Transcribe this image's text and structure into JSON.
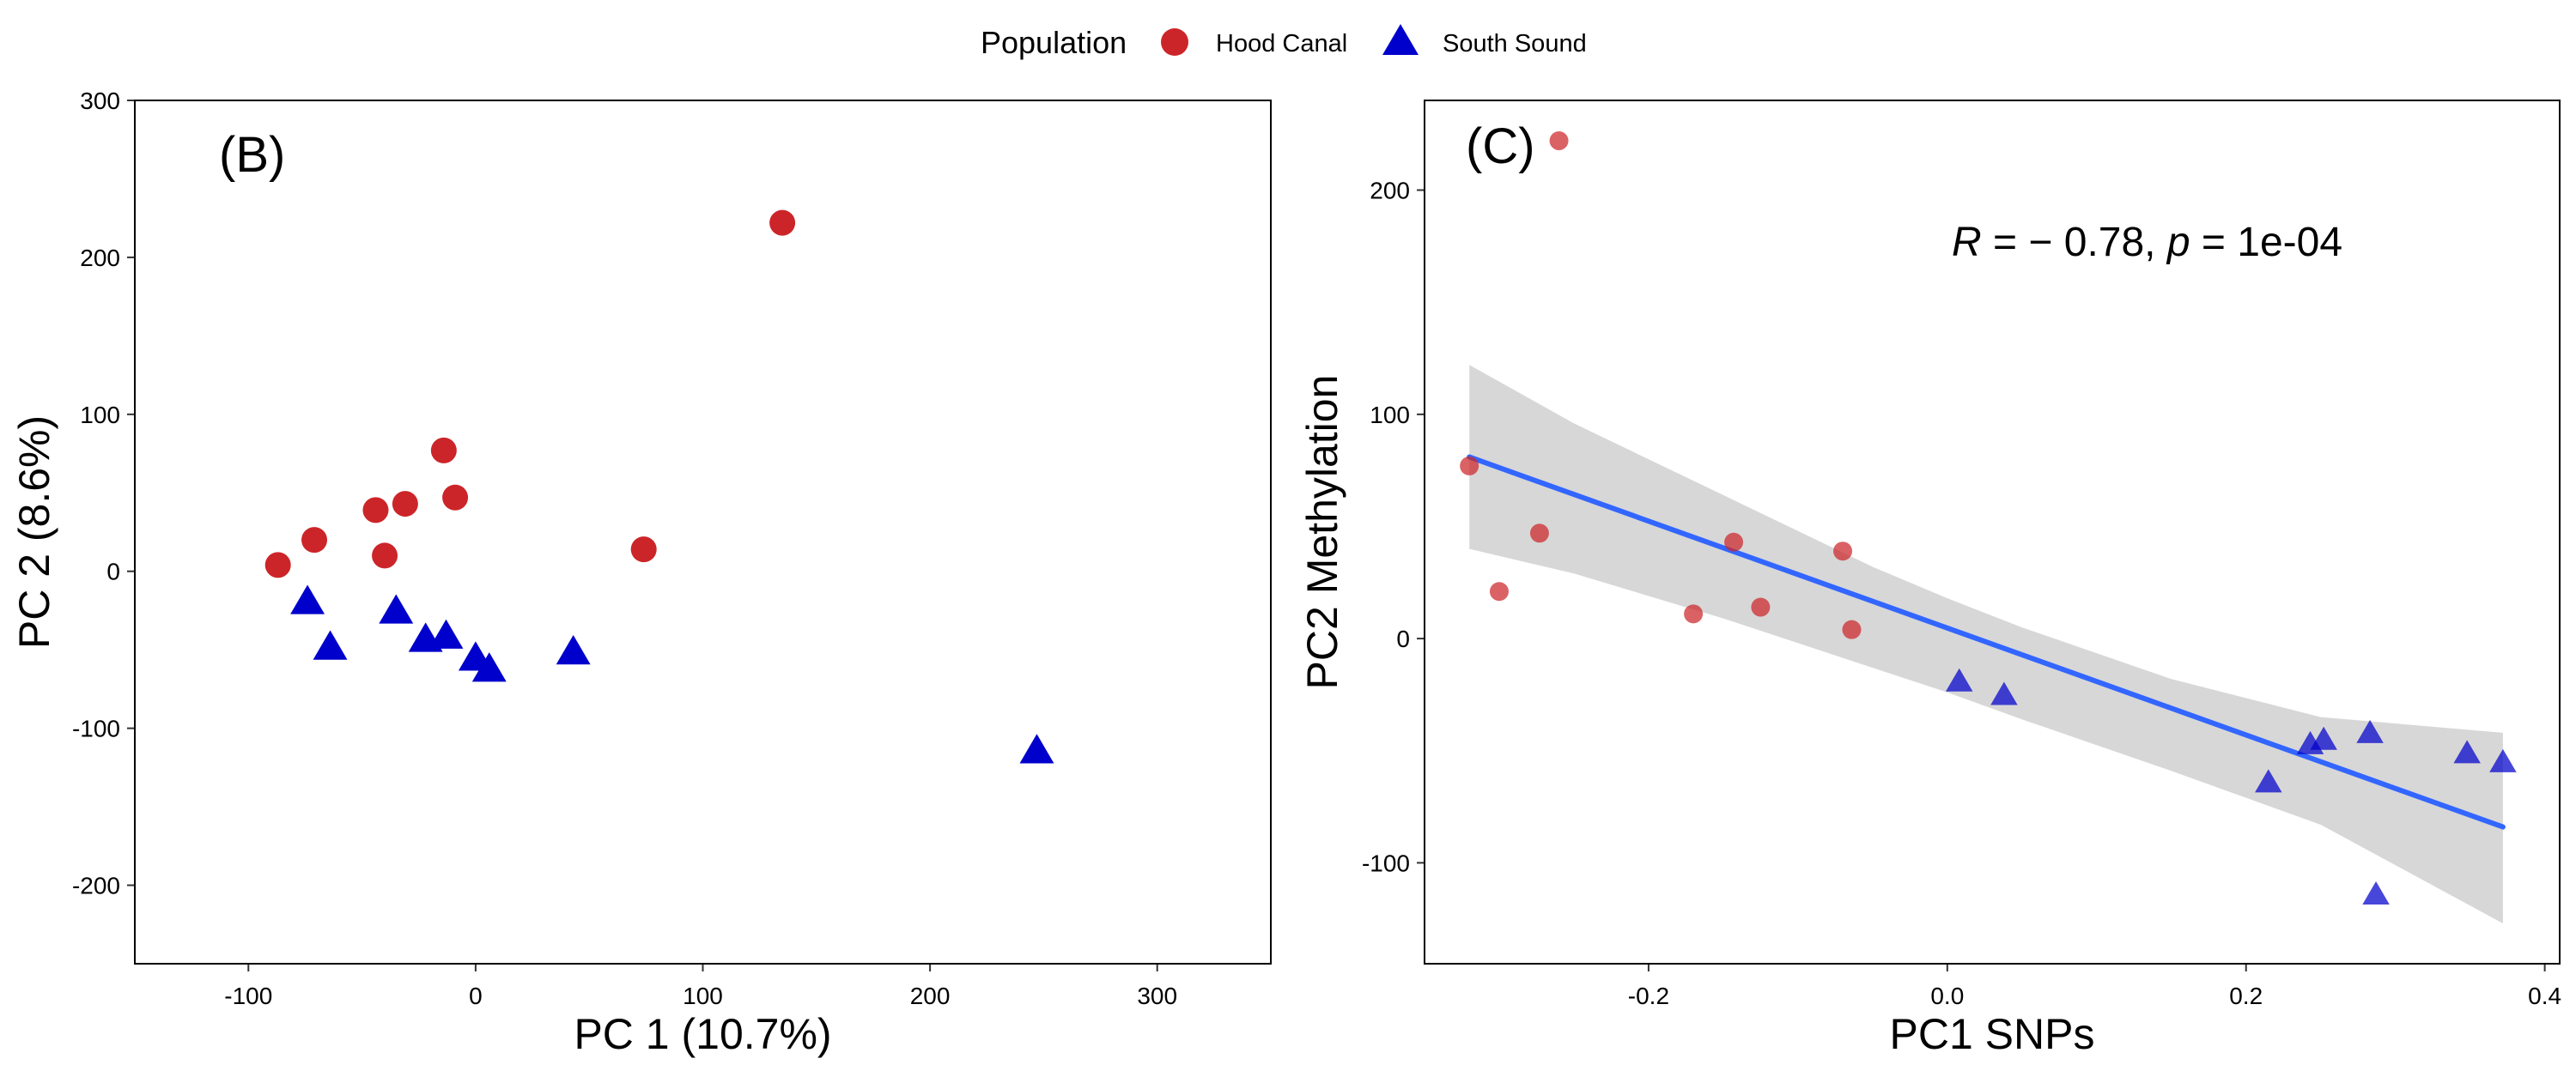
{
  "legend": {
    "title": "Population",
    "entries": [
      {
        "label": "Hood Canal",
        "shape": "circle",
        "color": "#cc2529"
      },
      {
        "label": "South Sound",
        "shape": "triangle",
        "color": "#0000cc"
      }
    ]
  },
  "chart_data": [
    {
      "type": "scatter",
      "panel_label": "(B)",
      "xlabel": "PC 1 (10.7%)",
      "ylabel": "PC 2 (8.6%)",
      "xlim": [
        -150,
        350
      ],
      "ylim": [
        -250,
        300
      ],
      "xticks": [
        -100,
        0,
        100,
        200,
        300
      ],
      "xtick_labels": [
        "-100",
        "0",
        "100",
        "200",
        "300"
      ],
      "yticks": [
        -200,
        -100,
        0,
        100,
        200,
        300
      ],
      "ytick_labels": [
        "-200",
        "-100",
        "0",
        "100",
        "200",
        "300"
      ],
      "grid": false,
      "series": [
        {
          "name": "Hood Canal",
          "marker": "circle",
          "color": "#cc2529",
          "points": [
            [
              -87,
              4
            ],
            [
              -71,
              20
            ],
            [
              -44,
              39
            ],
            [
              -40,
              10
            ],
            [
              -31,
              43
            ],
            [
              -14,
              77
            ],
            [
              -9,
              47
            ],
            [
              74,
              14
            ],
            [
              135,
              222
            ]
          ]
        },
        {
          "name": "South Sound",
          "marker": "triangle",
          "color": "#0000cc",
          "points": [
            [
              -74,
              -19
            ],
            [
              -64,
              -48
            ],
            [
              -35,
              -25
            ],
            [
              -22,
              -43
            ],
            [
              -13,
              -41
            ],
            [
              0,
              -55
            ],
            [
              6,
              -62
            ],
            [
              43,
              -51
            ],
            [
              247,
              -114
            ]
          ]
        }
      ]
    },
    {
      "type": "scatter",
      "panel_label": "(C)",
      "xlabel": "PC1 SNPs",
      "ylabel": "PC2 Methylation",
      "xlim": [
        -0.35,
        0.41
      ],
      "ylim": [
        -145,
        240
      ],
      "xticks": [
        -0.2,
        0.0,
        0.2,
        0.4
      ],
      "xtick_labels": [
        "-0.2",
        "0.0",
        "0.2",
        "0.4"
      ],
      "yticks": [
        -100,
        0,
        100,
        200
      ],
      "ytick_labels": [
        "-100",
        "0",
        "100",
        "200"
      ],
      "grid": false,
      "annotation": {
        "r_symbol": "R",
        "r_rest": " = − 0.78, ",
        "p_symbol": "p",
        "p_rest": " = 1e-04"
      },
      "regression": {
        "color": "#3366ff",
        "band_color": "#d3d3d3",
        "x": [
          -0.32,
          0.372
        ],
        "y": [
          81,
          -84
        ],
        "band": [
          [
            -0.32,
            40,
            122
          ],
          [
            -0.25,
            29,
            96
          ],
          [
            -0.15,
            9,
            64
          ],
          [
            -0.05,
            -13,
            32
          ],
          [
            0.0,
            -24,
            18
          ],
          [
            0.05,
            -36,
            5
          ],
          [
            0.15,
            -59,
            -18
          ],
          [
            0.25,
            -83,
            -35
          ],
          [
            0.372,
            -127,
            -42
          ]
        ]
      },
      "series": [
        {
          "name": "Hood Canal",
          "marker": "circle",
          "color": "#cc2529",
          "points": [
            [
              -0.32,
              77
            ],
            [
              -0.3,
              21
            ],
            [
              -0.273,
              47
            ],
            [
              -0.26,
              222
            ],
            [
              -0.17,
              11
            ],
            [
              -0.143,
              43
            ],
            [
              -0.125,
              14
            ],
            [
              -0.07,
              39
            ],
            [
              -0.064,
              4
            ]
          ]
        },
        {
          "name": "South Sound",
          "marker": "triangle",
          "color": "#0000cc",
          "points": [
            [
              0.008,
              -19
            ],
            [
              0.038,
              -25
            ],
            [
              0.215,
              -64
            ],
            [
              0.243,
              -47
            ],
            [
              0.252,
              -45
            ],
            [
              0.283,
              -42
            ],
            [
              0.287,
              -114
            ],
            [
              0.348,
              -51
            ],
            [
              0.372,
              -55
            ]
          ]
        }
      ]
    }
  ]
}
